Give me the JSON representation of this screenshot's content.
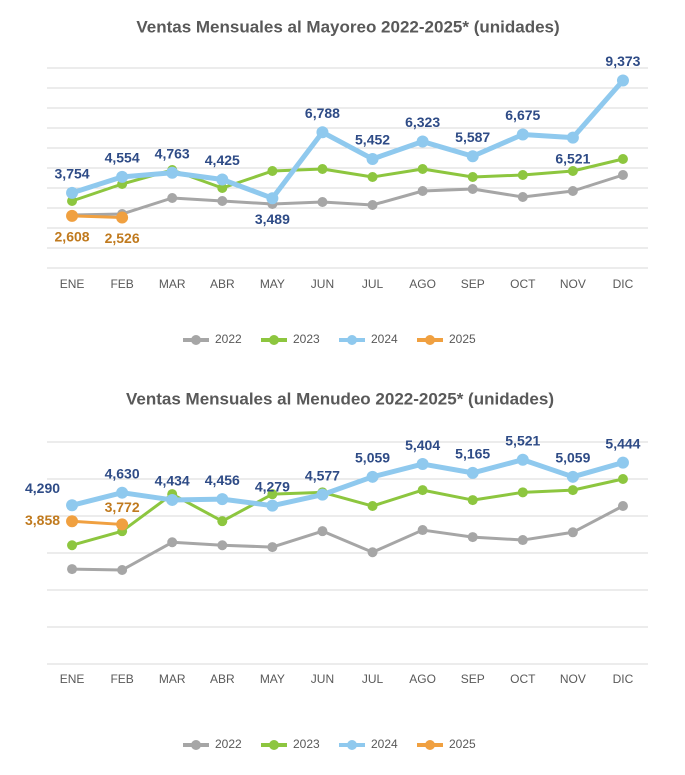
{
  "chart_data": [
    {
      "type": "line",
      "title": "Ventas Mensuales al Mayoreo 2022-2025* (unidades)",
      "categories": [
        "ENE",
        "FEB",
        "MAR",
        "ABR",
        "MAY",
        "JUN",
        "JUL",
        "AGO",
        "SEP",
        "OCT",
        "NOV",
        "DIC"
      ],
      "ylim": [
        0,
        10000
      ],
      "yticks": [
        0,
        1000,
        2000,
        3000,
        4000,
        5000,
        6000,
        7000,
        8000,
        9000,
        10000
      ],
      "grid": true,
      "legend": "bottom",
      "series": [
        {
          "name": "2022",
          "color": "#a6a6a6",
          "values": [
            2650,
            2700,
            3500,
            3350,
            3200,
            3300,
            3150,
            3850,
            3950,
            3550,
            3850,
            4650
          ]
        },
        {
          "name": "2023",
          "color": "#8dc63f",
          "values": [
            3350,
            4200,
            4900,
            4000,
            4850,
            4950,
            4550,
            4950,
            4550,
            4650,
            4850,
            5450
          ]
        },
        {
          "name": "2024",
          "color": "#8fc9ee",
          "label_color": "#2e4b86",
          "values": [
            3754,
            4554,
            4763,
            4425,
            3489,
            6788,
            5452,
            6323,
            5587,
            6675,
            6521,
            9373
          ],
          "value_labels": [
            "3,754",
            "4,554",
            "4,763",
            "4,425",
            "3,489",
            "6,788",
            "5,452",
            "6,323",
            "5,587",
            "6,675",
            "6,521",
            "9,373"
          ]
        },
        {
          "name": "2025",
          "color": "#f0a040",
          "label_color": "#c07a1e",
          "values": [
            2608,
            2526,
            null,
            null,
            null,
            null,
            null,
            null,
            null,
            null,
            null,
            null
          ],
          "value_labels": [
            "2,608",
            "2,526",
            null,
            null,
            null,
            null,
            null,
            null,
            null,
            null,
            null,
            null
          ]
        }
      ]
    },
    {
      "type": "line",
      "title": "Ventas Mensuales al Menudeo 2022-2025* (unidades)",
      "categories": [
        "ENE",
        "FEB",
        "MAR",
        "ABR",
        "MAY",
        "JUN",
        "JUL",
        "AGO",
        "SEP",
        "OCT",
        "NOV",
        "DIC"
      ],
      "ylim": [
        0,
        6000
      ],
      "yticks": [
        0,
        1000,
        2000,
        3000,
        4000,
        5000,
        6000
      ],
      "grid": true,
      "legend": "bottom",
      "series": [
        {
          "name": "2022",
          "color": "#a6a6a6",
          "values": [
            2565,
            2540,
            3290,
            3210,
            3160,
            3590,
            3020,
            3620,
            3430,
            3350,
            3560,
            4270
          ]
        },
        {
          "name": "2023",
          "color": "#8dc63f",
          "values": [
            3210,
            3590,
            4590,
            3860,
            4590,
            4640,
            4270,
            4700,
            4430,
            4640,
            4700,
            5000
          ]
        },
        {
          "name": "2024",
          "color": "#8fc9ee",
          "label_color": "#2e4b86",
          "values": [
            4290,
            4630,
            4434,
            4456,
            4279,
            4577,
            5059,
            5404,
            5165,
            5521,
            5059,
            5444
          ],
          "value_labels": [
            "4,290",
            "4,630",
            "4,434",
            "4,456",
            "4,279",
            "4,577",
            "5,059",
            "5,404",
            "5,165",
            "5,521",
            "5,059",
            "5,444"
          ]
        },
        {
          "name": "2025",
          "color": "#f0a040",
          "label_color": "#c07a1e",
          "values": [
            3858,
            3772,
            null,
            null,
            null,
            null,
            null,
            null,
            null,
            null,
            null,
            null
          ],
          "value_labels": [
            "3,858",
            "3,772",
            null,
            null,
            null,
            null,
            null,
            null,
            null,
            null,
            null,
            null
          ]
        }
      ]
    }
  ]
}
